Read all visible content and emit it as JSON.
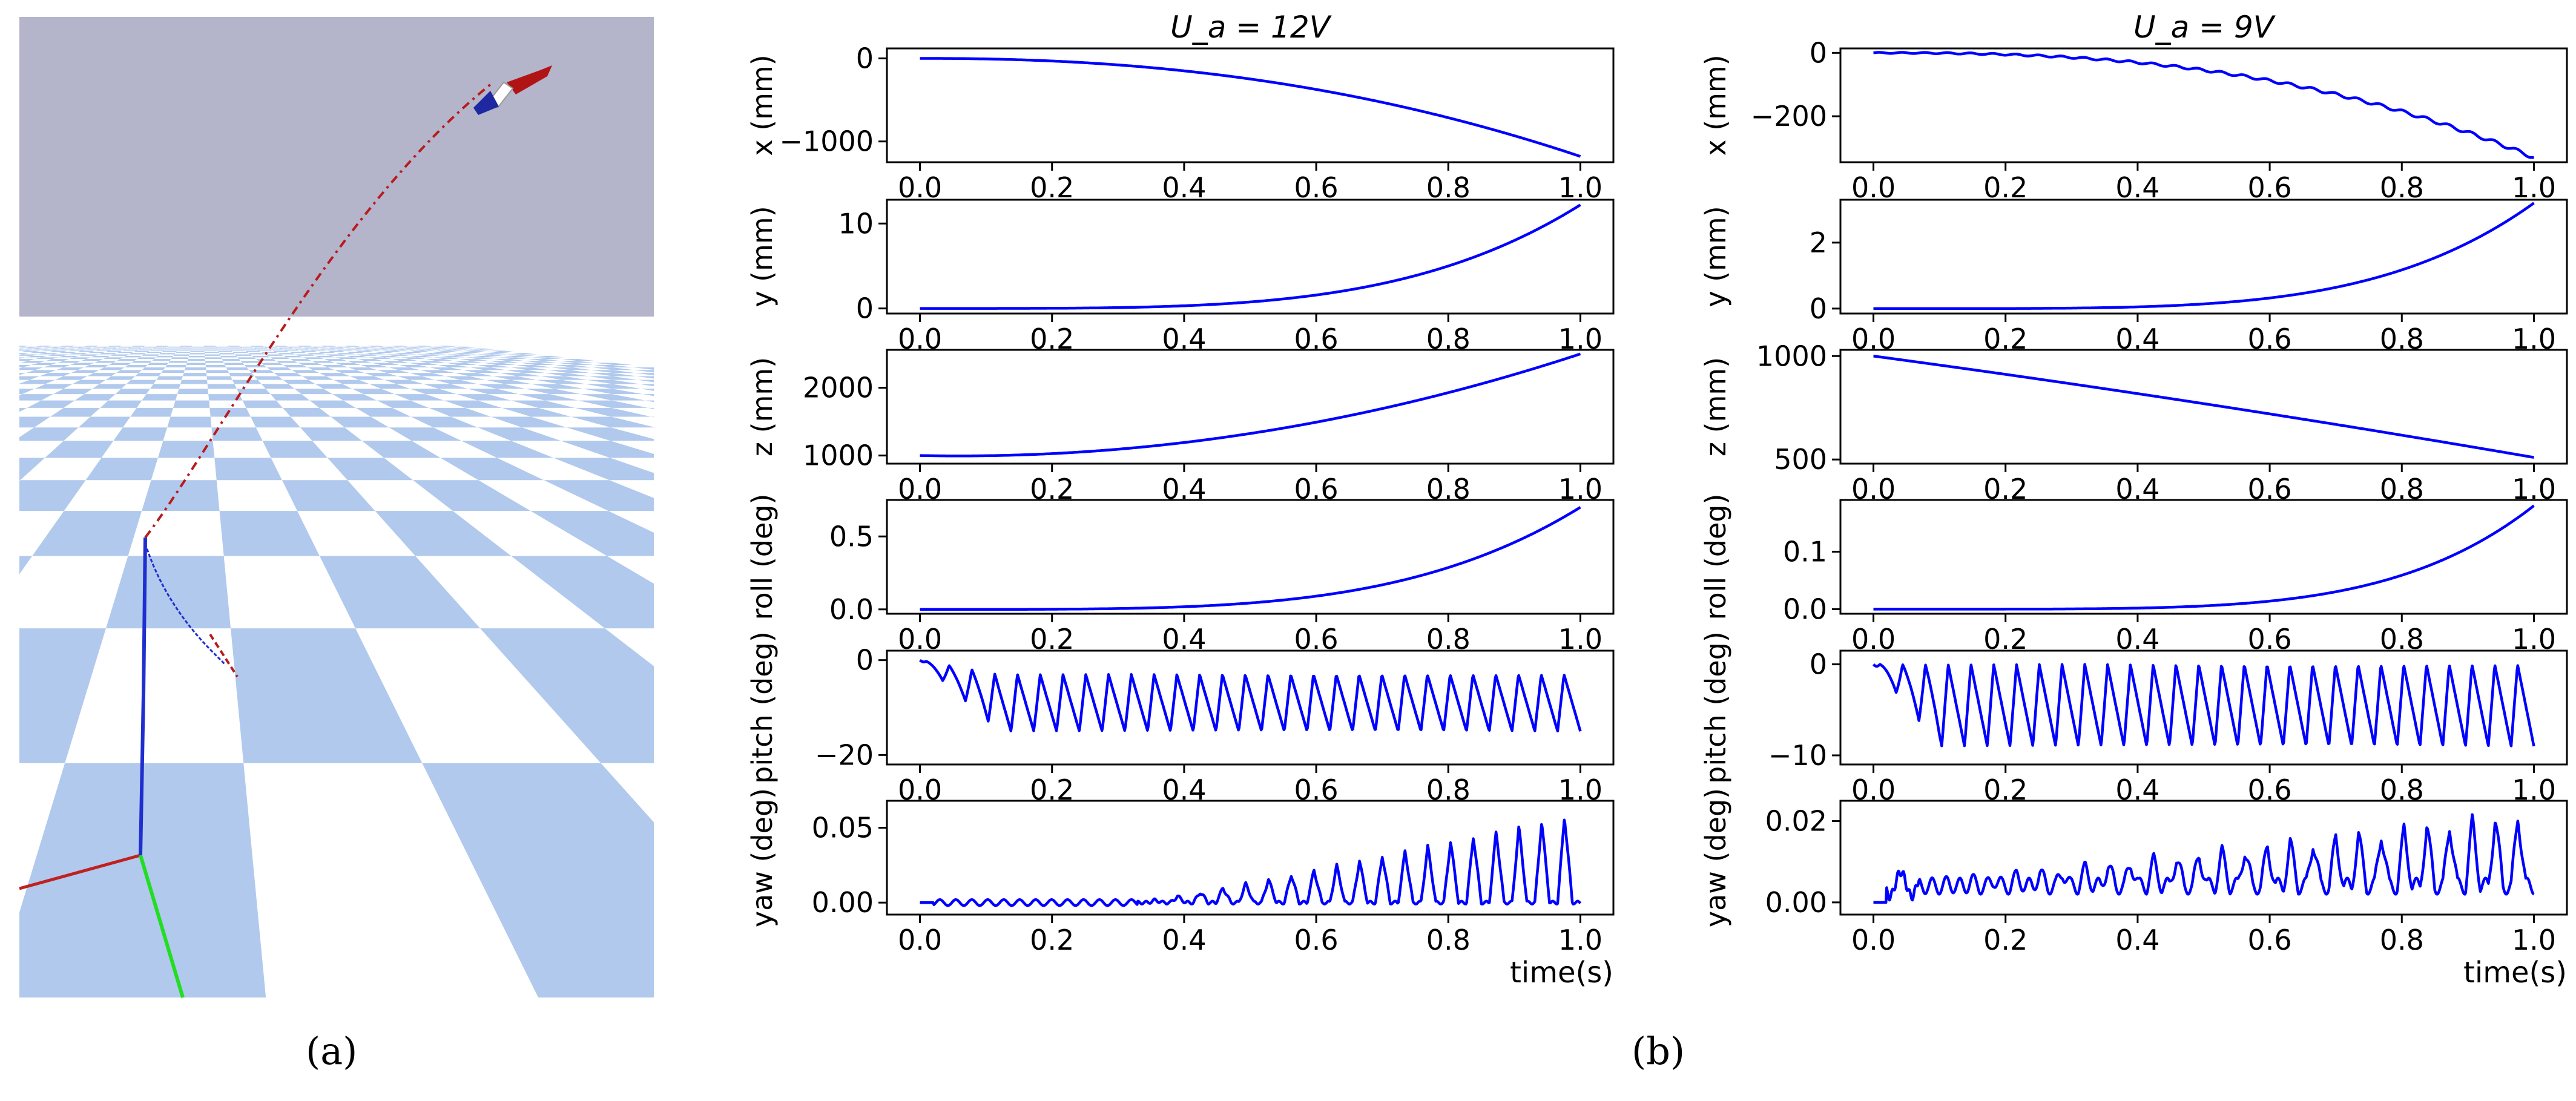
{
  "captions": {
    "a": "(a)",
    "b": "(b)"
  },
  "scene": {
    "sky_color": "#b4b4ca",
    "floor_colors": [
      "#ffffff",
      "#b1c9ed"
    ],
    "trajectory_colors": {
      "flight_path": "#b81b1b",
      "ground_path": "#1f2fcf"
    },
    "axis_colors": {
      "x": "#c12020",
      "y": "#22dd22"
    },
    "wing_colors": [
      "#1e28a0",
      "#ffffff",
      "#b11414"
    ]
  },
  "chart_data": [
    {
      "type": "line",
      "column_title": "U_a = 12V",
      "ylabel": "x (mm)",
      "xlabel": "",
      "color": "#0000ff",
      "ylim": [
        -1250,
        120
      ],
      "yticks": [
        {
          "v": 0,
          "label": "0"
        },
        {
          "v": -1000,
          "label": "−1000"
        }
      ],
      "xticks": [
        "0.0",
        "0.2",
        "0.4",
        "0.6",
        "0.8",
        "1.0"
      ],
      "xlim": [
        -0.05,
        1.05
      ],
      "model": "poly",
      "x_points": [
        0,
        1
      ],
      "poly": {
        "c": [
          0,
          0,
          -1180
        ],
        "p": [
          1,
          2,
          2.25
        ]
      }
    },
    {
      "type": "line",
      "ylabel": "y (mm)",
      "color": "#0000ff",
      "ylim": [
        -0.6,
        12.8
      ],
      "yticks": [
        {
          "v": 10,
          "label": "10"
        },
        {
          "v": 0,
          "label": "0"
        }
      ],
      "xticks": [
        "0.0",
        "0.2",
        "0.4",
        "0.6",
        "0.8",
        "1.0"
      ],
      "xlim": [
        -0.05,
        1.05
      ],
      "model": "poly",
      "poly": {
        "c": [
          0,
          12.2
        ],
        "p": [
          1,
          4
        ]
      }
    },
    {
      "type": "line",
      "ylabel": "z (mm)",
      "color": "#0000ff",
      "ylim": [
        880,
        2560
      ],
      "yticks": [
        {
          "v": 2000,
          "label": "2000"
        },
        {
          "v": 1000,
          "label": "1000"
        }
      ],
      "xticks": [
        "0.0",
        "0.2",
        "0.4",
        "0.6",
        "0.8",
        "1.0"
      ],
      "xlim": [
        -0.05,
        1.05
      ],
      "model": "poly",
      "poly": {
        "c": [
          1000,
          -200,
          1700
        ],
        "p": [
          1,
          1,
          2
        ]
      }
    },
    {
      "type": "line",
      "ylabel": "roll (deg)",
      "color": "#0000ff",
      "ylim": [
        -0.03,
        0.75
      ],
      "yticks": [
        {
          "v": 0.5,
          "label": "0.5"
        },
        {
          "v": 0,
          "label": "0.0"
        }
      ],
      "xticks": [
        "0.0",
        "0.2",
        "0.4",
        "0.6",
        "0.8",
        "1.0"
      ],
      "xlim": [
        -0.05,
        1.05
      ],
      "model": "poly",
      "poly": {
        "c": [
          0,
          0.7
        ],
        "p": [
          1,
          4
        ]
      }
    },
    {
      "type": "line",
      "ylabel": "pitch (deg)",
      "color": "#0000ff",
      "ylim": [
        -22,
        2
      ],
      "yticks": [
        {
          "v": 0,
          "label": "0"
        },
        {
          "v": -20,
          "label": "−20"
        }
      ],
      "xticks": [
        "0.0",
        "0.2",
        "0.4",
        "0.6",
        "0.8",
        "1.0"
      ],
      "xlim": [
        -0.05,
        1.05
      ],
      "model": "osc",
      "osc": {
        "mean": -9,
        "amp": 6,
        "cycles": 29,
        "onset": 0.12,
        "start": 0
      }
    },
    {
      "type": "line",
      "ylabel": "yaw (deg)",
      "xlabel": "time(s)",
      "color": "#0000ff",
      "ylim": [
        -0.008,
        0.068
      ],
      "yticks": [
        {
          "v": 0.05,
          "label": "0.05"
        },
        {
          "v": 0,
          "label": "0.00"
        }
      ],
      "xticks": [
        "0.0",
        "0.2",
        "0.4",
        "0.6",
        "0.8",
        "1.0"
      ],
      "xlim": [
        -0.05,
        1.05
      ],
      "model": "yaw",
      "yaw": {
        "growth": 0.06,
        "cycles": 29,
        "noise_end": 0.33
      }
    },
    {
      "type": "line",
      "column_title": "U_a = 9V",
      "ylabel": "x (mm)",
      "color": "#0000ff",
      "ylim": [
        -345,
        14
      ],
      "yticks": [
        {
          "v": 0,
          "label": "0"
        },
        {
          "v": -200,
          "label": "−200"
        }
      ],
      "xticks": [
        "0.0",
        "0.2",
        "0.4",
        "0.6",
        "0.8",
        "1.0"
      ],
      "xlim": [
        -0.05,
        1.05
      ],
      "model": "poly",
      "poly": {
        "c": [
          0,
          -330
        ],
        "p": [
          1,
          2.6
        ]
      },
      "ripple": 4
    },
    {
      "type": "line",
      "ylabel": "y (mm)",
      "color": "#0000ff",
      "ylim": [
        -0.15,
        3.3
      ],
      "yticks": [
        {
          "v": 2,
          "label": "2"
        },
        {
          "v": 0,
          "label": "0"
        }
      ],
      "xticks": [
        "0.0",
        "0.2",
        "0.4",
        "0.6",
        "0.8",
        "1.0"
      ],
      "xlim": [
        -0.05,
        1.05
      ],
      "model": "poly",
      "poly": {
        "c": [
          0,
          3.2
        ],
        "p": [
          1,
          4.5
        ]
      }
    },
    {
      "type": "line",
      "ylabel": "z (mm)",
      "color": "#0000ff",
      "ylim": [
        480,
        1030
      ],
      "yticks": [
        {
          "v": 1000,
          "label": "1000"
        },
        {
          "v": 500,
          "label": "500"
        }
      ],
      "xticks": [
        "0.0",
        "0.2",
        "0.4",
        "0.6",
        "0.8",
        "1.0"
      ],
      "xlim": [
        -0.05,
        1.05
      ],
      "model": "poly",
      "poly": {
        "c": [
          1000,
          -430,
          -60
        ],
        "p": [
          1,
          1,
          2
        ]
      }
    },
    {
      "type": "line",
      "ylabel": "roll (deg)",
      "color": "#0000ff",
      "ylim": [
        -0.008,
        0.19
      ],
      "yticks": [
        {
          "v": 0.1,
          "label": "0.1"
        },
        {
          "v": 0,
          "label": "0.0"
        }
      ],
      "xticks": [
        "0.0",
        "0.2",
        "0.4",
        "0.6",
        "0.8",
        "1.0"
      ],
      "xlim": [
        -0.05,
        1.05
      ],
      "model": "poly",
      "poly": {
        "c": [
          0,
          0.18
        ],
        "p": [
          1,
          5
        ]
      }
    },
    {
      "type": "line",
      "ylabel": "pitch (deg)",
      "color": "#0000ff",
      "ylim": [
        -11,
        1.5
      ],
      "yticks": [
        {
          "v": 0,
          "label": "0"
        },
        {
          "v": -10,
          "label": "−10"
        }
      ],
      "xticks": [
        "0.0",
        "0.2",
        "0.4",
        "0.6",
        "0.8",
        "1.0"
      ],
      "xlim": [
        -0.05,
        1.05
      ],
      "model": "osc",
      "osc": {
        "mean": -4.5,
        "amp": 4.5,
        "cycles": 29,
        "onset": 0.1,
        "start": 0
      }
    },
    {
      "type": "line",
      "ylabel": "yaw (deg)",
      "xlabel": "time(s)",
      "color": "#0000ff",
      "ylim": [
        -0.003,
        0.025
      ],
      "yticks": [
        {
          "v": 0.02,
          "label": "0.02"
        },
        {
          "v": 0,
          "label": "0.00"
        }
      ],
      "xticks": [
        "0.0",
        "0.2",
        "0.4",
        "0.6",
        "0.8",
        "1.0"
      ],
      "xlim": [
        -0.05,
        1.05
      ],
      "model": "yaw9",
      "yaw": {
        "growth": 0.018,
        "cycles": 29,
        "noise_end": 0.07
      }
    }
  ]
}
